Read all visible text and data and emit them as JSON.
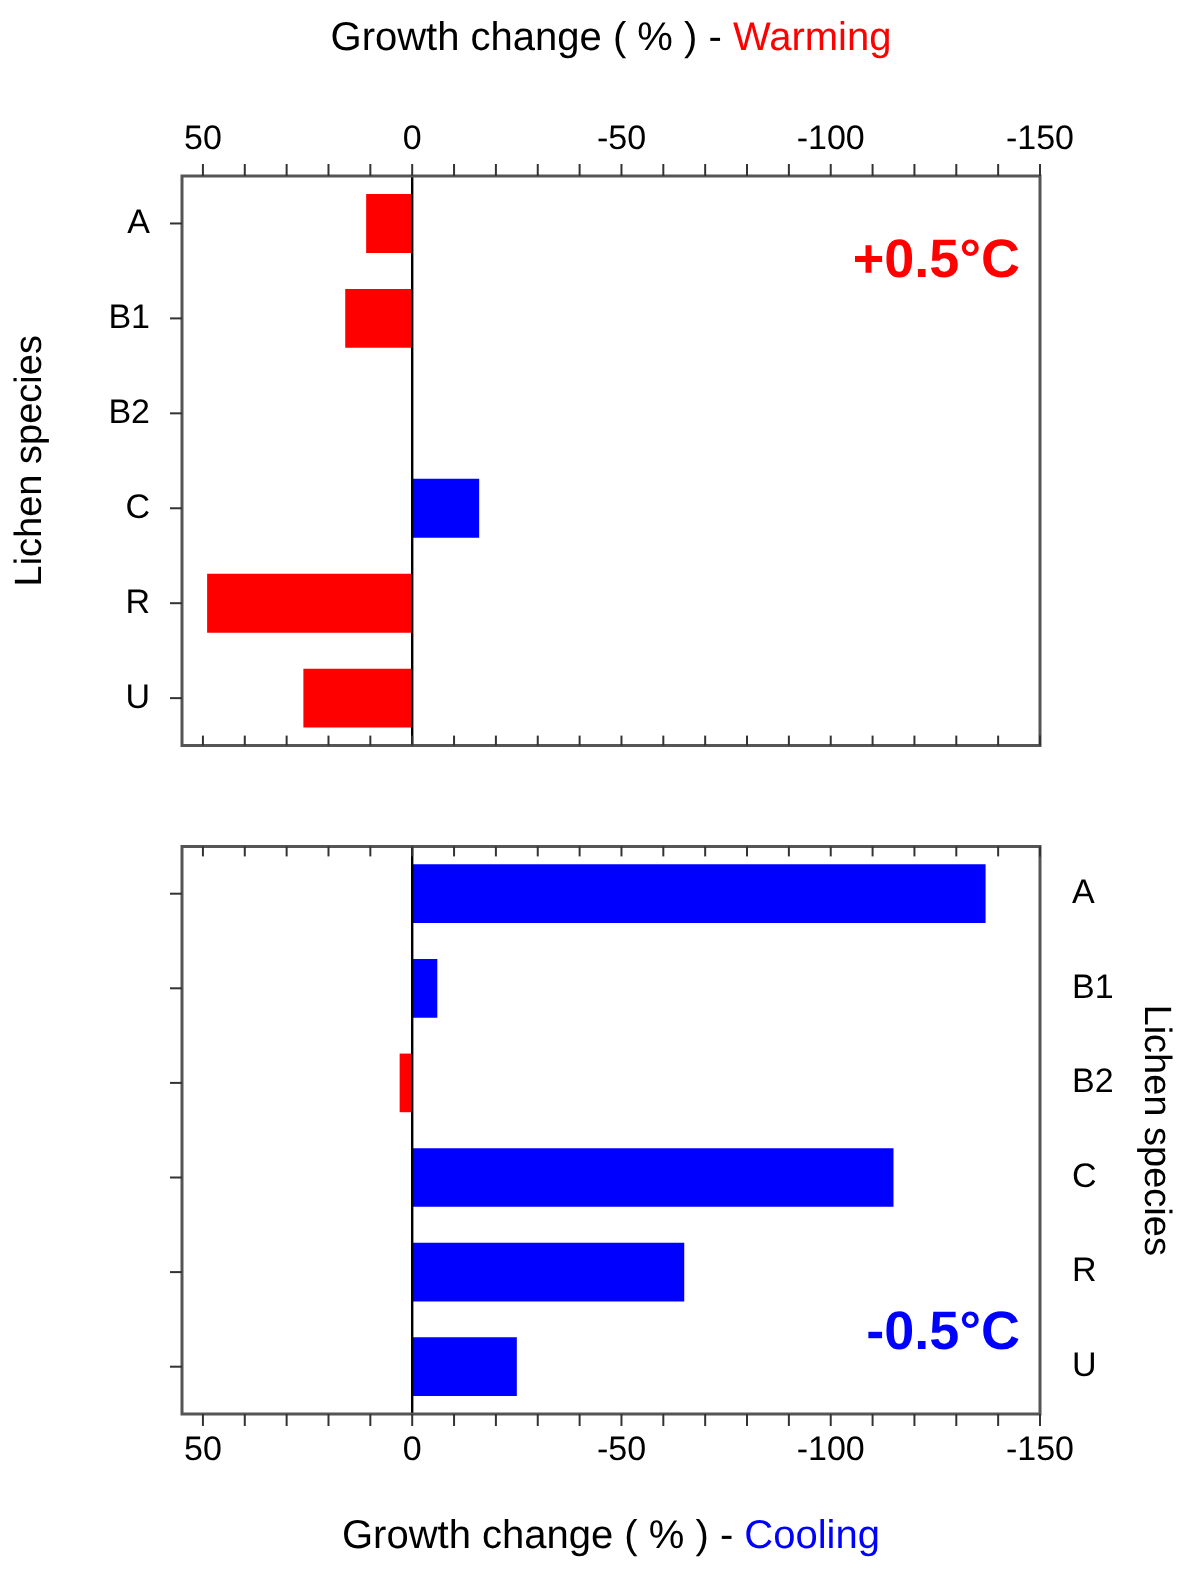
{
  "chart_data": [
    {
      "type": "bar",
      "orientation": "horizontal",
      "categories": [
        "A",
        "B1",
        "B2",
        "C",
        "R",
        "U"
      ],
      "values": [
        11,
        16,
        0,
        -16,
        49,
        26
      ],
      "colors": [
        "#ff0000",
        "#ff0000",
        "#ff0000",
        "#0000ff",
        "#ff0000",
        "#ff0000"
      ],
      "xlim": [
        55,
        -150
      ],
      "xticks": [
        50,
        {
          "value": 40,
          "label": null
        },
        {
          "value": 30,
          "label": null
        },
        {
          "value": 20,
          "label": null
        },
        {
          "value": 10,
          "label": null
        },
        0,
        {
          "value": -10,
          "label": null
        },
        {
          "value": -20,
          "label": null
        },
        {
          "value": -30,
          "label": null
        },
        {
          "value": -40,
          "label": null
        },
        -50,
        {
          "value": -60,
          "label": null
        },
        {
          "value": -70,
          "label": null
        },
        {
          "value": -80,
          "label": null
        },
        {
          "value": -90,
          "label": null
        },
        -100,
        {
          "value": -110,
          "label": null
        },
        {
          "value": -120,
          "label": null
        },
        {
          "value": -130,
          "label": null
        },
        {
          "value": -140,
          "label": null
        },
        -150
      ],
      "xlabel": "Growth change ( % ) - Warming",
      "ylabel": "Lichen species",
      "annotations": [
        "+0.5°C"
      ],
      "ref_lines": [
        {
          "axis": "x",
          "value": 0,
          "color": "#000000"
        }
      ],
      "grid": false
    },
    {
      "type": "bar",
      "orientation": "horizontal",
      "categories": [
        "A",
        "B1",
        "B2",
        "C",
        "R",
        "U"
      ],
      "values": [
        -137,
        -6,
        3,
        -115,
        -65,
        -25
      ],
      "colors": [
        "#0000ff",
        "#0000ff",
        "#ff0000",
        "#0000ff",
        "#0000ff",
        "#0000ff"
      ],
      "xlim": [
        55,
        -150
      ],
      "xticks": [
        50,
        {
          "value": 40,
          "label": null
        },
        {
          "value": 30,
          "label": null
        },
        {
          "value": 20,
          "label": null
        },
        {
          "value": 10,
          "label": null
        },
        0,
        {
          "value": -10,
          "label": null
        },
        {
          "value": -20,
          "label": null
        },
        {
          "value": -30,
          "label": null
        },
        {
          "value": -40,
          "label": null
        },
        -50,
        {
          "value": -60,
          "label": null
        },
        {
          "value": -70,
          "label": null
        },
        {
          "value": -80,
          "label": null
        },
        {
          "value": -90,
          "label": null
        },
        -100,
        {
          "value": -110,
          "label": null
        },
        {
          "value": -120,
          "label": null
        },
        {
          "value": -130,
          "label": null
        },
        {
          "value": -140,
          "label": null
        },
        -150
      ],
      "xlabel": "Growth change ( % ) - Cooling",
      "y2label": "Lichen species",
      "annotations": [
        "-0.5°C"
      ],
      "ref_lines": [
        {
          "axis": "x",
          "value": 0,
          "color": "#000000"
        }
      ],
      "grid": false
    }
  ]
}
